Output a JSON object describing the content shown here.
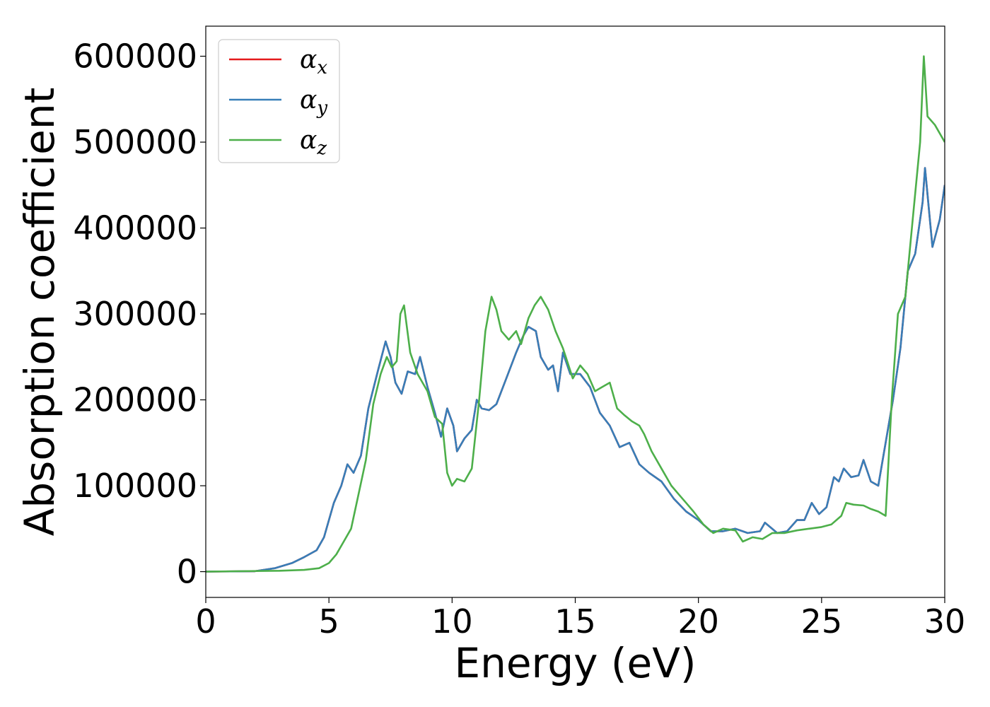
{
  "chart_data": {
    "type": "line",
    "title": "",
    "xlabel": "Energy (eV)",
    "ylabel": "Absorption coefficient",
    "xlim": [
      0,
      30
    ],
    "ylim": [
      -30000,
      635000
    ],
    "xticks": [
      0,
      5,
      10,
      15,
      20,
      25,
      30
    ],
    "yticks": [
      0,
      100000,
      200000,
      300000,
      400000,
      500000,
      600000
    ],
    "grid": false,
    "legend_position": "top-left",
    "series": [
      {
        "name": "α",
        "subscript": "x",
        "color": "#e41a1c",
        "x": [
          0,
          2,
          2.8,
          3.5,
          4,
          4.5,
          4.8,
          5.2,
          5.5,
          5.75,
          6,
          6.3,
          6.6,
          7,
          7.3,
          7.5,
          7.7,
          7.95,
          8.2,
          8.5,
          8.7,
          9,
          9.3,
          9.55,
          9.8,
          10.05,
          10.2,
          10.5,
          10.8,
          11,
          11.2,
          11.5,
          11.8,
          12.2,
          12.6,
          12.9,
          13.1,
          13.4,
          13.6,
          13.9,
          14.1,
          14.3,
          14.5,
          14.8,
          15.2,
          15.6,
          16,
          16.4,
          16.8,
          17.2,
          17.6,
          18,
          18.5,
          19,
          19.5,
          20,
          20.5,
          21,
          21.5,
          22,
          22.5,
          22.7,
          23.2,
          23.6,
          24,
          24.3,
          24.6,
          24.9,
          25.2,
          25.5,
          25.7,
          25.9,
          26.2,
          26.5,
          26.7,
          27,
          27.3,
          27.6,
          27.9,
          28.2,
          28.5,
          28.8,
          29.1,
          29.2,
          29.5,
          29.8,
          30
        ],
        "y": [
          0,
          500,
          4000,
          10000,
          17000,
          25000,
          40000,
          80000,
          100000,
          125000,
          115000,
          135000,
          190000,
          235000,
          268000,
          250000,
          220000,
          207000,
          233000,
          230000,
          250000,
          215000,
          185000,
          157000,
          190000,
          170000,
          140000,
          155000,
          165000,
          200000,
          190000,
          188000,
          195000,
          225000,
          255000,
          275000,
          285000,
          280000,
          250000,
          235000,
          240000,
          210000,
          255000,
          230000,
          230000,
          215000,
          185000,
          170000,
          145000,
          150000,
          125000,
          115000,
          105000,
          85000,
          70000,
          60000,
          47000,
          47000,
          50000,
          45000,
          47000,
          57000,
          45000,
          47000,
          60000,
          60000,
          80000,
          67000,
          75000,
          110000,
          105000,
          120000,
          110000,
          112000,
          130000,
          105000,
          100000,
          150000,
          200000,
          260000,
          350000,
          370000,
          430000,
          470000,
          378000,
          410000,
          450000
        ]
      },
      {
        "name": "α",
        "subscript": "y",
        "color": "#377eb8",
        "x": [
          0,
          2,
          2.8,
          3.5,
          4,
          4.5,
          4.8,
          5.2,
          5.5,
          5.75,
          6,
          6.3,
          6.6,
          7,
          7.3,
          7.5,
          7.7,
          7.95,
          8.2,
          8.5,
          8.7,
          9,
          9.3,
          9.55,
          9.8,
          10.05,
          10.2,
          10.5,
          10.8,
          11,
          11.2,
          11.5,
          11.8,
          12.2,
          12.6,
          12.9,
          13.1,
          13.4,
          13.6,
          13.9,
          14.1,
          14.3,
          14.5,
          14.8,
          15.2,
          15.6,
          16,
          16.4,
          16.8,
          17.2,
          17.6,
          18,
          18.5,
          19,
          19.5,
          20,
          20.5,
          21,
          21.5,
          22,
          22.5,
          22.7,
          23.2,
          23.6,
          24,
          24.3,
          24.6,
          24.9,
          25.2,
          25.5,
          25.7,
          25.9,
          26.2,
          26.5,
          26.7,
          27,
          27.3,
          27.6,
          27.9,
          28.2,
          28.5,
          28.8,
          29.1,
          29.2,
          29.5,
          29.8,
          30
        ],
        "y": [
          0,
          500,
          4000,
          10000,
          17000,
          25000,
          40000,
          80000,
          100000,
          125000,
          115000,
          135000,
          190000,
          235000,
          268000,
          250000,
          220000,
          207000,
          233000,
          230000,
          250000,
          215000,
          185000,
          157000,
          190000,
          170000,
          140000,
          155000,
          165000,
          200000,
          190000,
          188000,
          195000,
          225000,
          255000,
          275000,
          285000,
          280000,
          250000,
          235000,
          240000,
          210000,
          255000,
          230000,
          230000,
          215000,
          185000,
          170000,
          145000,
          150000,
          125000,
          115000,
          105000,
          85000,
          70000,
          60000,
          47000,
          47000,
          50000,
          45000,
          47000,
          57000,
          45000,
          47000,
          60000,
          60000,
          80000,
          67000,
          75000,
          110000,
          105000,
          120000,
          110000,
          112000,
          130000,
          105000,
          100000,
          150000,
          200000,
          260000,
          350000,
          370000,
          430000,
          470000,
          378000,
          410000,
          450000
        ]
      },
      {
        "name": "α",
        "subscript": "z",
        "color": "#4daf4a",
        "x": [
          0,
          3,
          4,
          4.6,
          5,
          5.3,
          5.6,
          5.9,
          6.2,
          6.5,
          6.8,
          7.1,
          7.35,
          7.55,
          7.75,
          7.9,
          8.05,
          8.3,
          8.6,
          9,
          9.3,
          9.6,
          9.8,
          10,
          10.2,
          10.5,
          10.8,
          11.1,
          11.35,
          11.6,
          11.8,
          12,
          12.3,
          12.6,
          12.8,
          13.1,
          13.35,
          13.6,
          13.9,
          14.2,
          14.5,
          14.9,
          15.2,
          15.5,
          15.8,
          16.1,
          16.4,
          16.7,
          17,
          17.3,
          17.6,
          17.8,
          18.1,
          18.5,
          18.9,
          19.2,
          19.5,
          19.8,
          20.2,
          20.6,
          21,
          21.5,
          21.8,
          22.2,
          22.6,
          23,
          23.5,
          24,
          24.5,
          25,
          25.4,
          25.8,
          26,
          26.3,
          26.7,
          27,
          27.3,
          27.6,
          27.85,
          28.1,
          28.4,
          28.7,
          29,
          29.15,
          29.3,
          29.6,
          30
        ],
        "y": [
          0,
          1000,
          2000,
          4000,
          10000,
          20000,
          35000,
          50000,
          90000,
          130000,
          195000,
          230000,
          250000,
          238000,
          245000,
          300000,
          310000,
          255000,
          230000,
          210000,
          180000,
          172000,
          115000,
          100000,
          108000,
          105000,
          120000,
          200000,
          280000,
          320000,
          305000,
          280000,
          270000,
          280000,
          265000,
          295000,
          310000,
          320000,
          305000,
          280000,
          260000,
          225000,
          240000,
          230000,
          210000,
          215000,
          220000,
          190000,
          182000,
          175000,
          170000,
          160000,
          140000,
          120000,
          100000,
          90000,
          80000,
          70000,
          55000,
          45000,
          50000,
          48000,
          35000,
          40000,
          38000,
          45000,
          45000,
          48000,
          50000,
          52000,
          55000,
          65000,
          80000,
          78000,
          77000,
          73000,
          70000,
          65000,
          200000,
          300000,
          320000,
          410000,
          500000,
          600000,
          530000,
          520000,
          500000
        ]
      }
    ]
  }
}
